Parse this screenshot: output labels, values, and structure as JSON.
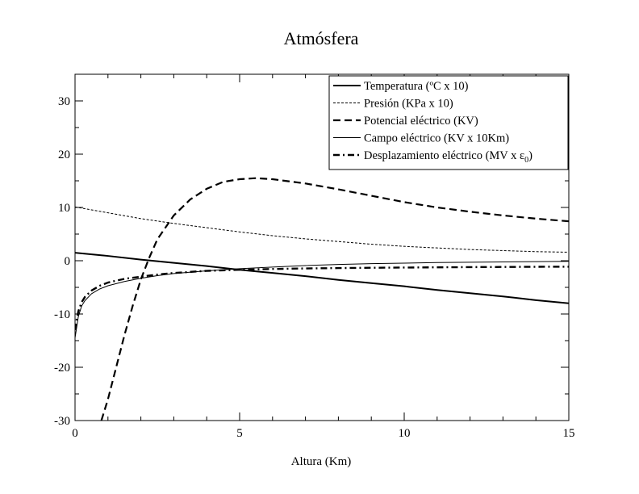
{
  "chart_data": {
    "type": "line",
    "title": "Atmósfera",
    "xlabel": "Altura (Km)",
    "ylabel": "",
    "xlim": [
      0,
      15
    ],
    "ylim": [
      -30,
      35
    ],
    "xticks": [
      0,
      5,
      10,
      15
    ],
    "yticks": [
      -30,
      -20,
      -10,
      0,
      10,
      20,
      30
    ],
    "xtick_labels": [
      "0",
      "5",
      "10",
      "15"
    ],
    "ytick_labels": [
      "-30",
      "-20",
      "-10",
      "0",
      "10",
      "20",
      "30"
    ],
    "grid": false,
    "legend_position": "top-right",
    "series": [
      {
        "name": "Temperatura (ºC x 10)",
        "style": "solid-thick",
        "x": [
          0,
          1,
          2,
          3,
          4,
          5,
          6,
          7,
          8,
          9,
          10,
          11,
          12,
          13,
          14,
          15
        ],
        "y": [
          1.5,
          0.9,
          0.2,
          -0.4,
          -1.0,
          -1.7,
          -2.3,
          -2.9,
          -3.6,
          -4.2,
          -4.8,
          -5.5,
          -6.1,
          -6.7,
          -7.4,
          -8.0
        ]
      },
      {
        "name": "Presión (KPa x 10)",
        "style": "dotted-thin",
        "x": [
          0,
          1,
          2,
          3,
          4,
          5,
          6,
          7,
          8,
          9,
          10,
          11,
          12,
          13,
          14,
          15
        ],
        "y": [
          10.1,
          9.0,
          7.9,
          7.0,
          6.2,
          5.4,
          4.7,
          4.1,
          3.6,
          3.1,
          2.7,
          2.4,
          2.1,
          1.9,
          1.7,
          1.6
        ]
      },
      {
        "name": "Potencial eléctrico (KV)",
        "style": "dashed-thick",
        "x": [
          0.8,
          1.0,
          1.25,
          1.5,
          1.75,
          2.0,
          2.25,
          2.5,
          3.0,
          3.5,
          4.0,
          4.5,
          5.0,
          5.5,
          6.0,
          7.0,
          8.0,
          9.0,
          10.0,
          11.0,
          12.0,
          13.0,
          14.0,
          15.0
        ],
        "y": [
          -30,
          -26,
          -20,
          -14,
          -8.5,
          -3.5,
          0.5,
          4.0,
          8.5,
          11.5,
          13.5,
          14.8,
          15.3,
          15.5,
          15.3,
          14.5,
          13.4,
          12.2,
          11.0,
          10.0,
          9.2,
          8.5,
          7.9,
          7.4
        ]
      },
      {
        "name": "Campo eléctrico (KV x 10Km)",
        "style": "solid-thin",
        "x": [
          0.0,
          0.05,
          0.1,
          0.2,
          0.3,
          0.5,
          0.75,
          1.0,
          1.5,
          2.0,
          2.5,
          3.0,
          4.0,
          5.0,
          6.0,
          7.0,
          8.0,
          9.0,
          10.0,
          11.0,
          12.0,
          13.0,
          14.0,
          15.0
        ],
        "y": [
          -14.5,
          -12.5,
          -10.5,
          -8.5,
          -7.5,
          -6.2,
          -5.3,
          -4.7,
          -3.9,
          -3.3,
          -2.8,
          -2.4,
          -1.9,
          -1.5,
          -1.2,
          -0.9,
          -0.7,
          -0.55,
          -0.45,
          -0.35,
          -0.28,
          -0.22,
          -0.17,
          -0.12
        ]
      },
      {
        "name": "Desplazamiento eléctrico (MV x ε0)",
        "style": "dash-dot-thick",
        "x": [
          0.0,
          0.05,
          0.1,
          0.2,
          0.3,
          0.5,
          0.75,
          1.0,
          1.5,
          2.0,
          2.5,
          3.0,
          4.0,
          5.0,
          6.0,
          7.0,
          8.0,
          9.0,
          10.0,
          11.0,
          12.0,
          13.0,
          14.0,
          15.0
        ],
        "y": [
          -13.0,
          -11.0,
          -9.5,
          -7.8,
          -6.8,
          -5.6,
          -4.7,
          -4.1,
          -3.4,
          -3.0,
          -2.6,
          -2.3,
          -1.9,
          -1.7,
          -1.55,
          -1.45,
          -1.38,
          -1.32,
          -1.28,
          -1.24,
          -1.2,
          -1.17,
          -1.14,
          -1.12
        ]
      }
    ]
  }
}
